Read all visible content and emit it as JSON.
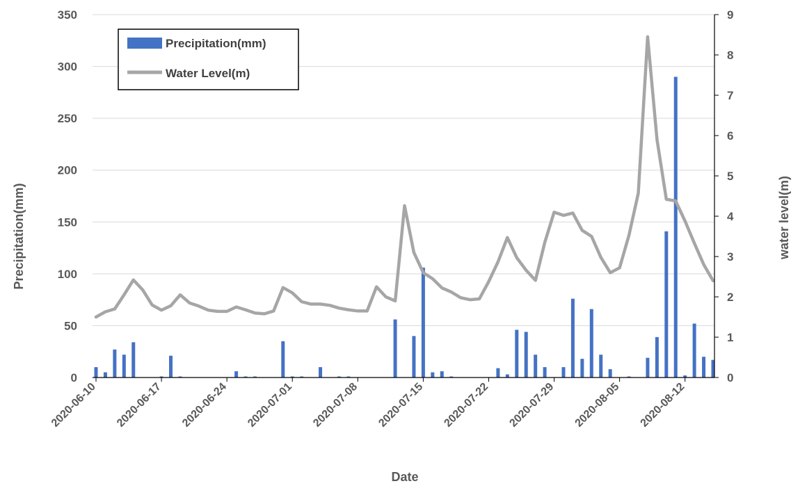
{
  "chart_data": {
    "type": "bar+line",
    "xlabel": "Date",
    "y_left_label": "Precipitation(mm)",
    "y_right_label": "water level(m)",
    "y_left_range": [
      0,
      350
    ],
    "y_left_ticks": [
      0,
      50,
      100,
      150,
      200,
      250,
      300,
      350
    ],
    "y_right_range": [
      0,
      9
    ],
    "y_right_ticks": [
      0,
      1,
      2,
      3,
      4,
      5,
      6,
      7,
      8,
      9
    ],
    "x_start": "2020-06-10",
    "x_end": "2020-08-15",
    "x_tick_labels": [
      "2020-06-10",
      "2020-06-17",
      "2020-06-24",
      "2020-07-01",
      "2020-07-08",
      "2020-07-15",
      "2020-07-22",
      "2020-07-29",
      "2020-08-05",
      "2020-08-12"
    ],
    "grid": "horizontal",
    "legend_position": "top-left",
    "series": [
      {
        "name": "Precipitation(mm)",
        "type": "bar",
        "axis": "left",
        "color": "#4472C4",
        "values": [
          [
            "2020-06-10",
            10
          ],
          [
            "2020-06-11",
            5
          ],
          [
            "2020-06-12",
            27
          ],
          [
            "2020-06-13",
            22
          ],
          [
            "2020-06-14",
            34
          ],
          [
            "2020-06-17",
            1
          ],
          [
            "2020-06-18",
            21
          ],
          [
            "2020-06-19",
            1
          ],
          [
            "2020-06-25",
            6
          ],
          [
            "2020-06-26",
            1
          ],
          [
            "2020-06-27",
            1
          ],
          [
            "2020-06-30",
            35
          ],
          [
            "2020-07-01",
            1
          ],
          [
            "2020-07-02",
            1
          ],
          [
            "2020-07-04",
            10
          ],
          [
            "2020-07-06",
            1
          ],
          [
            "2020-07-07",
            1
          ],
          [
            "2020-07-12",
            56
          ],
          [
            "2020-07-14",
            40
          ],
          [
            "2020-07-15",
            106
          ],
          [
            "2020-07-16",
            5
          ],
          [
            "2020-07-17",
            6
          ],
          [
            "2020-07-18",
            1
          ],
          [
            "2020-07-23",
            9
          ],
          [
            "2020-07-24",
            3
          ],
          [
            "2020-07-25",
            46
          ],
          [
            "2020-07-26",
            44
          ],
          [
            "2020-07-27",
            22
          ],
          [
            "2020-07-28",
            10
          ],
          [
            "2020-07-30",
            10
          ],
          [
            "2020-07-31",
            76
          ],
          [
            "2020-08-01",
            18
          ],
          [
            "2020-08-02",
            66
          ],
          [
            "2020-08-03",
            22
          ],
          [
            "2020-08-04",
            8
          ],
          [
            "2020-08-06",
            1
          ],
          [
            "2020-08-08",
            19
          ],
          [
            "2020-08-09",
            39
          ],
          [
            "2020-08-10",
            141
          ],
          [
            "2020-08-11",
            290
          ],
          [
            "2020-08-12",
            2
          ],
          [
            "2020-08-13",
            52
          ],
          [
            "2020-08-14",
            20
          ],
          [
            "2020-08-15",
            17
          ]
        ]
      },
      {
        "name": "Water Level(m)",
        "type": "line",
        "axis": "right",
        "color": "#A6A6A6",
        "values": [
          [
            "2020-06-10",
            1.5
          ],
          [
            "2020-06-11",
            1.63
          ],
          [
            "2020-06-12",
            1.7
          ],
          [
            "2020-06-13",
            2.05
          ],
          [
            "2020-06-14",
            2.42
          ],
          [
            "2020-06-15",
            2.17
          ],
          [
            "2020-06-16",
            1.8
          ],
          [
            "2020-06-17",
            1.67
          ],
          [
            "2020-06-18",
            1.78
          ],
          [
            "2020-06-19",
            2.05
          ],
          [
            "2020-06-20",
            1.85
          ],
          [
            "2020-06-21",
            1.77
          ],
          [
            "2020-06-22",
            1.67
          ],
          [
            "2020-06-23",
            1.64
          ],
          [
            "2020-06-24",
            1.64
          ],
          [
            "2020-06-25",
            1.75
          ],
          [
            "2020-06-26",
            1.68
          ],
          [
            "2020-06-27",
            1.6
          ],
          [
            "2020-06-28",
            1.58
          ],
          [
            "2020-06-29",
            1.65
          ],
          [
            "2020-06-30",
            2.23
          ],
          [
            "2020-07-01",
            2.1
          ],
          [
            "2020-07-02",
            1.88
          ],
          [
            "2020-07-03",
            1.82
          ],
          [
            "2020-07-04",
            1.82
          ],
          [
            "2020-07-05",
            1.79
          ],
          [
            "2020-07-06",
            1.72
          ],
          [
            "2020-07-07",
            1.68
          ],
          [
            "2020-07-08",
            1.65
          ],
          [
            "2020-07-09",
            1.65
          ],
          [
            "2020-07-10",
            2.25
          ],
          [
            "2020-07-11",
            2.0
          ],
          [
            "2020-07-12",
            1.9
          ],
          [
            "2020-07-13",
            4.26
          ],
          [
            "2020-07-14",
            3.1
          ],
          [
            "2020-07-15",
            2.6
          ],
          [
            "2020-07-16",
            2.45
          ],
          [
            "2020-07-17",
            2.22
          ],
          [
            "2020-07-18",
            2.12
          ],
          [
            "2020-07-19",
            1.98
          ],
          [
            "2020-07-20",
            1.93
          ],
          [
            "2020-07-21",
            1.95
          ],
          [
            "2020-07-22",
            2.38
          ],
          [
            "2020-07-23",
            2.87
          ],
          [
            "2020-07-24",
            3.47
          ],
          [
            "2020-07-25",
            2.97
          ],
          [
            "2020-07-26",
            2.66
          ],
          [
            "2020-07-27",
            2.41
          ],
          [
            "2020-07-28",
            3.35
          ],
          [
            "2020-07-29",
            4.1
          ],
          [
            "2020-07-30",
            4.02
          ],
          [
            "2020-07-31",
            4.08
          ],
          [
            "2020-08-01",
            3.65
          ],
          [
            "2020-08-02",
            3.5
          ],
          [
            "2020-08-03",
            2.98
          ],
          [
            "2020-08-04",
            2.6
          ],
          [
            "2020-08-05",
            2.72
          ],
          [
            "2020-08-06",
            3.52
          ],
          [
            "2020-08-07",
            4.57
          ],
          [
            "2020-08-08",
            8.45
          ],
          [
            "2020-08-09",
            5.9
          ],
          [
            "2020-08-10",
            4.42
          ],
          [
            "2020-08-11",
            4.38
          ],
          [
            "2020-08-12",
            3.88
          ],
          [
            "2020-08-13",
            3.33
          ],
          [
            "2020-08-14",
            2.8
          ],
          [
            "2020-08-15",
            2.4
          ]
        ]
      }
    ]
  }
}
